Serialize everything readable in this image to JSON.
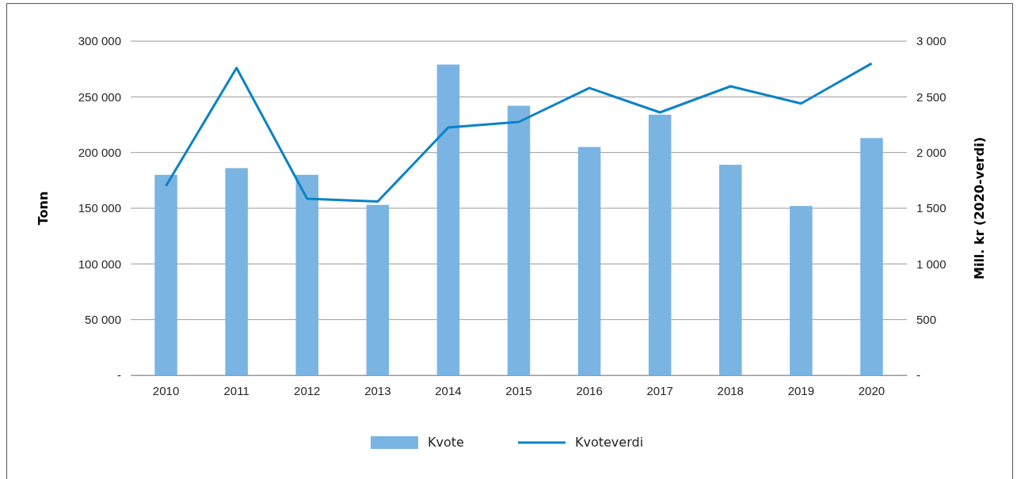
{
  "chart_data": {
    "type": "bar",
    "ylabel": "Tonn",
    "y2label": "Mill. kr (2020-verdi)",
    "categories": [
      "2010",
      "2011",
      "2012",
      "2013",
      "2014",
      "2015",
      "2016",
      "2017",
      "2018",
      "2019",
      "2020"
    ],
    "series": [
      {
        "name": "Kvote",
        "color": "#7ab4e3",
        "values": [
          180000,
          186000,
          180000,
          153000,
          279000,
          242000,
          205000,
          234000,
          189000,
          152000,
          213000
        ]
      },
      {
        "name": "Kvoteverdi",
        "type": "line",
        "axis": "y2",
        "color": "#0a83c6",
        "values": [
          1700,
          2760,
          1585,
          1560,
          2225,
          2275,
          2580,
          2360,
          2595,
          2440,
          2800
        ]
      }
    ],
    "ylim": [
      0,
      300000
    ],
    "yticks": [
      {
        "value": 0,
        "label": "-"
      },
      {
        "value": 50000,
        "label": "50 000"
      },
      {
        "value": 100000,
        "label": "100 000"
      },
      {
        "value": 150000,
        "label": "150 000"
      },
      {
        "value": 200000,
        "label": "200 000"
      },
      {
        "value": 250000,
        "label": "250 000"
      },
      {
        "value": 300000,
        "label": "300 000"
      }
    ],
    "y2lim": [
      0,
      3000
    ],
    "y2ticks": [
      {
        "value": 0,
        "label": "-"
      },
      {
        "value": 500,
        "label": "500"
      },
      {
        "value": 1000,
        "label": "1 000"
      },
      {
        "value": 1500,
        "label": "1 500"
      },
      {
        "value": 2000,
        "label": "2 000"
      },
      {
        "value": 2500,
        "label": "2 500"
      },
      {
        "value": 3000,
        "label": "3 000"
      }
    ],
    "grid": "y",
    "legend": "bottom",
    "marker": "none",
    "line_style": "solid"
  }
}
